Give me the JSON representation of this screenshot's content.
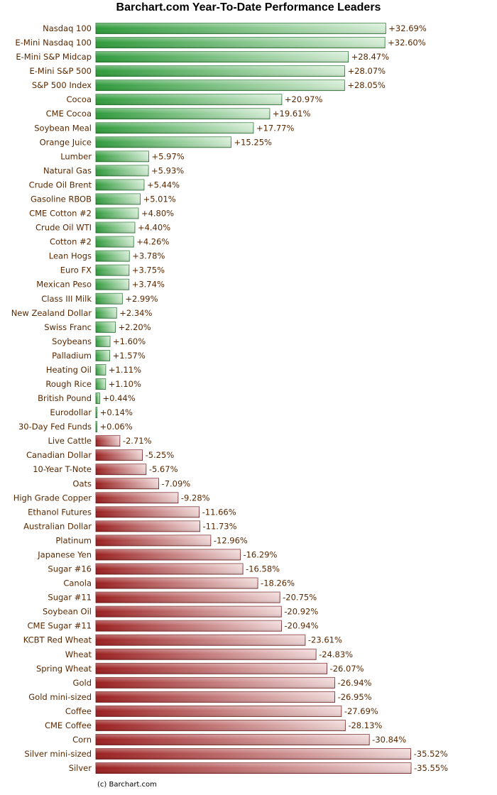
{
  "chart_data": {
    "type": "bar",
    "orientation": "horizontal",
    "title": "Barchart.com Year-To-Date Performance Leaders",
    "credit": "(c) Barchart.com",
    "value_format": "percent with sign",
    "colors": {
      "positive": "#2e9a3a",
      "negative": "#a02424",
      "label_text": "#5a2800"
    },
    "categories": [
      "Nasdaq 100",
      "E-Mini Nasdaq 100",
      "E-Mini S&P Midcap",
      "E-Mini S&P 500",
      "S&P 500 Index",
      "Cocoa",
      "CME Cocoa",
      "Soybean Meal",
      "Orange Juice",
      "Lumber",
      "Natural Gas",
      "Crude Oil Brent",
      "Gasoline RBOB",
      "CME Cotton #2",
      "Crude Oil WTI",
      "Cotton #2",
      "Lean Hogs",
      "Euro FX",
      "Mexican Peso",
      "Class III Milk",
      "New Zealand Dollar",
      "Swiss Franc",
      "Soybeans",
      "Palladium",
      "Heating Oil",
      "Rough Rice",
      "British Pound",
      "Eurodollar",
      "30-Day Fed Funds",
      "Live Cattle",
      "Canadian Dollar",
      "10-Year T-Note",
      "Oats",
      "High Grade Copper",
      "Ethanol Futures",
      "Australian Dollar",
      "Platinum",
      "Japanese Yen",
      "Sugar #16",
      "Canola",
      "Sugar #11",
      "Soybean Oil",
      "CME Sugar #11",
      "KCBT Red Wheat",
      "Wheat",
      "Spring Wheat",
      "Gold",
      "Gold mini-sized",
      "Coffee",
      "CME Coffee",
      "Corn",
      "Silver mini-sized",
      "Silver"
    ],
    "values": [
      32.69,
      32.6,
      28.47,
      28.07,
      28.05,
      20.97,
      19.61,
      17.77,
      15.25,
      5.97,
      5.93,
      5.44,
      5.01,
      4.8,
      4.4,
      4.26,
      3.78,
      3.75,
      3.74,
      2.99,
      2.34,
      2.2,
      1.6,
      1.57,
      1.11,
      1.1,
      0.44,
      0.14,
      0.06,
      -2.71,
      -5.25,
      -5.67,
      -7.09,
      -9.28,
      -11.66,
      -11.73,
      -12.96,
      -16.29,
      -16.58,
      -18.26,
      -20.75,
      -20.92,
      -20.94,
      -23.61,
      -24.83,
      -26.07,
      -26.94,
      -26.95,
      -27.69,
      -28.13,
      -30.84,
      -35.52,
      -35.55
    ],
    "labels": [
      "+32.69%",
      "+32.60%",
      "+28.47%",
      "+28.07%",
      "+28.05%",
      "+20.97%",
      "+19.61%",
      "+17.77%",
      "+15.25%",
      "+5.97%",
      "+5.93%",
      "+5.44%",
      "+5.01%",
      "+4.80%",
      "+4.40%",
      "+4.26%",
      "+3.78%",
      "+3.75%",
      "+3.74%",
      "+2.99%",
      "+2.34%",
      "+2.20%",
      "+1.60%",
      "+1.57%",
      "+1.11%",
      "+1.10%",
      "+0.44%",
      "+0.14%",
      "+0.06%",
      "-2.71%",
      "-5.25%",
      "-5.67%",
      "-7.09%",
      "-9.28%",
      "-11.66%",
      "-11.73%",
      "-12.96%",
      "-16.29%",
      "-16.58%",
      "-18.26%",
      "-20.75%",
      "-20.92%",
      "-20.94%",
      "-23.61%",
      "-24.83%",
      "-26.07%",
      "-26.94%",
      "-26.95%",
      "-27.69%",
      "-28.13%",
      "-30.84%",
      "-35.52%",
      "-35.55%"
    ],
    "grid": false,
    "legend": "none"
  }
}
